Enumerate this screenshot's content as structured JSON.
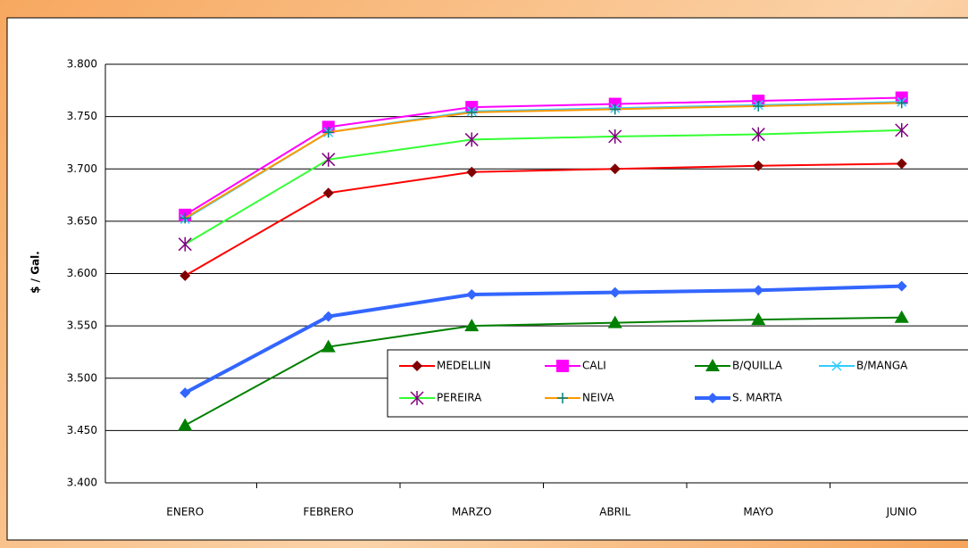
{
  "chart_data": {
    "type": "line",
    "y_label": "$ / Gal.",
    "categories": [
      "ENERO",
      "FEBRERO",
      "MARZO",
      "ABRIL",
      "MAYO",
      "JUNIO"
    ],
    "ylim": [
      3400,
      3800
    ],
    "yticks": [
      {
        "value": 3400,
        "label": "3.400"
      },
      {
        "value": 3450,
        "label": "3.450"
      },
      {
        "value": 3500,
        "label": "3.500"
      },
      {
        "value": 3550,
        "label": "3.550"
      },
      {
        "value": 3600,
        "label": "3.600"
      },
      {
        "value": 3650,
        "label": "3.650"
      },
      {
        "value": 3700,
        "label": "3.700"
      },
      {
        "value": 3750,
        "label": "3.750"
      },
      {
        "value": 3800,
        "label": "3.800"
      }
    ],
    "grid": true,
    "series": [
      {
        "name": "MEDELLIN",
        "color": "#ff0000",
        "marker": "diamond",
        "marker_color": "#800000",
        "values": [
          3598,
          3677,
          3697,
          3700,
          3703,
          3705
        ]
      },
      {
        "name": "CALI",
        "color": "#ff00ff",
        "marker": "square",
        "marker_color": "#ff00ff",
        "values": [
          3656,
          3740,
          3759,
          3762,
          3765,
          3768
        ]
      },
      {
        "name": "B/QUILLA",
        "color": "#008000",
        "marker": "triangle",
        "marker_color": "#008000",
        "values": [
          3455,
          3530,
          3550,
          3553,
          3556,
          3558
        ]
      },
      {
        "name": "B/MANGA",
        "color": "#33ccff",
        "marker": "x",
        "marker_color": "#33ccff",
        "values": [
          3652,
          3735,
          3755,
          3758,
          3761,
          3764
        ]
      },
      {
        "name": "PEREIRA",
        "color": "#33ff33",
        "marker": "star",
        "marker_color": "#800080",
        "values": [
          3628,
          3709,
          3728,
          3731,
          3733,
          3737
        ]
      },
      {
        "name": "NEIVA",
        "color": "#ff9900",
        "marker": "plus",
        "marker_color": "#008080",
        "values": [
          3653,
          3735,
          3754,
          3757,
          3760,
          3763
        ]
      },
      {
        "name": "S. MARTA",
        "color": "#3366ff",
        "marker": "diamond",
        "marker_color": "#3366ff",
        "values": [
          3486,
          3559,
          3580,
          3582,
          3584,
          3588
        ]
      }
    ]
  }
}
